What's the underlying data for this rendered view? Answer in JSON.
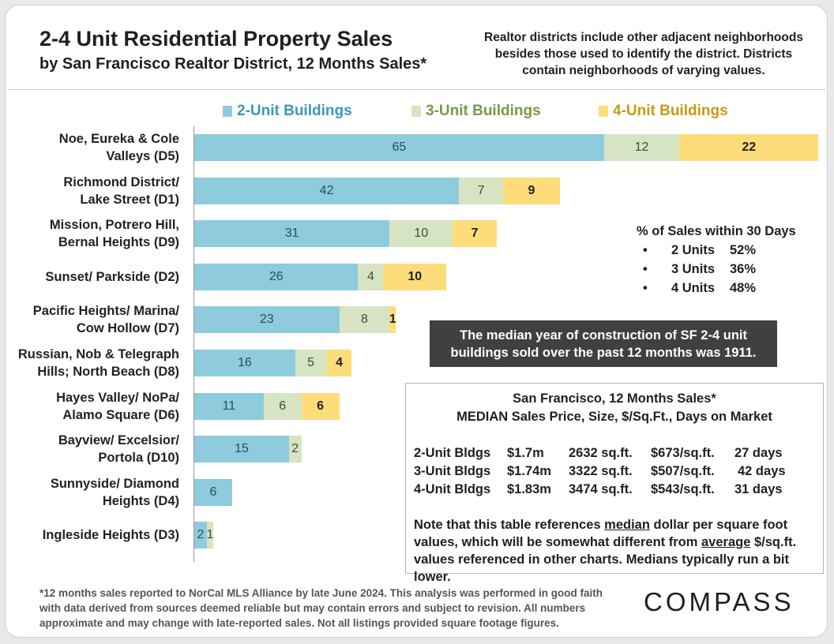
{
  "title": "2-4 Unit Residential Property Sales",
  "subtitle": "by San Francisco Realtor District, 12 Months Sales*",
  "top_note": [
    "Realtor districts include other adjacent neighborhoods",
    "besides those used to identify the district. Districts",
    "contain neighborhoods of varying values."
  ],
  "colors": {
    "two_unit": "#8ecbdc",
    "three_unit": "#d7e4c3",
    "four_unit": "#fddc7a",
    "legend_two_text": "#3a9ab7",
    "legend_three_text": "#7a9a47",
    "legend_four_text": "#c99a12"
  },
  "chart_data": {
    "type": "bar",
    "orientation": "horizontal",
    "stacked": true,
    "title": "2-4 Unit Residential Property Sales",
    "legend_position": "top",
    "categories": [
      [
        "Noe, Eureka & Cole",
        "Valleys (D5)"
      ],
      [
        "Richmond District/",
        "Lake Street (D1)"
      ],
      [
        "Mission, Potrero Hill,",
        "Bernal Heights (D9)"
      ],
      [
        "Sunset/ Parkside (D2)"
      ],
      [
        "Pacific Heights/ Marina/",
        "Cow Hollow (D7)"
      ],
      [
        "Russian, Nob & Telegraph",
        "Hills; North Beach (D8)"
      ],
      [
        "Hayes Valley/ NoPa/",
        "Alamo Square (D6)"
      ],
      [
        "Bayview/ Excelsior/",
        "Portola (D10)"
      ],
      [
        "Sunnyside/ Diamond",
        "Heights (D4)"
      ],
      [
        "Ingleside Heights (D3)"
      ]
    ],
    "series": [
      {
        "name": "2-Unit Buildings",
        "values": [
          65,
          42,
          31,
          26,
          23,
          16,
          11,
          15,
          6,
          2
        ]
      },
      {
        "name": "3-Unit Buildings",
        "values": [
          12,
          7,
          10,
          4,
          8,
          5,
          6,
          2,
          0,
          1
        ]
      },
      {
        "name": "4-Unit Buildings",
        "values": [
          22,
          9,
          7,
          10,
          1,
          4,
          6,
          0,
          0,
          0
        ]
      }
    ],
    "xlim": [
      0,
      99
    ]
  },
  "pct_30_days": {
    "title": "% of Sales within 30 Days",
    "rows": [
      {
        "bullet": "•",
        "label": "2 Units",
        "value": "52%"
      },
      {
        "bullet": "•",
        "label": "3 Units",
        "value": "36%"
      },
      {
        "bullet": "•",
        "label": "4 Units",
        "value": "48%"
      }
    ]
  },
  "construction_note": [
    "The median year of construction of SF 2-4 unit",
    "buildings sold over the past 12 months was 1911."
  ],
  "median_table": {
    "title1": "San Francisco, 12 Months Sales*",
    "title2": "MEDIAN Sales Price, Size, $/Sq.Ft., Days on Market",
    "rows": [
      {
        "type": "2-Unit Bldgs",
        "price": "$1.7m",
        "size": "2632 sq.ft.",
        "ppsf": "$673/sq.ft.",
        "dom": "27 days"
      },
      {
        "type": "3-Unit Bldgs",
        "price": "$1.74m",
        "size": "3322 sq.ft.",
        "ppsf": "$507/sq.ft.",
        "dom": "42 days"
      },
      {
        "type": "4-Unit Bldgs",
        "price": "$1.83m",
        "size": "3474 sq.ft.",
        "ppsf": "$543/sq.ft.",
        "dom": "31 days"
      }
    ],
    "note_p1": "Note that this table references ",
    "note_u1": "median",
    "note_p2": " dollar per square foot values, which will be somewhat different from ",
    "note_u2": "average",
    "note_p3": " $/sq.ft. values referenced in other charts. Medians typically run a bit lower."
  },
  "footnote": [
    "*12 months sales reported to NorCal MLS Alliance by late June 2024. This analysis was performed in good faith",
    "with data derived from sources deemed reliable but may contain errors and subject to revision. All numbers",
    "approximate and may change with late-reported sales. Not all listings provided square footage figures."
  ],
  "logo": "COMPASS"
}
